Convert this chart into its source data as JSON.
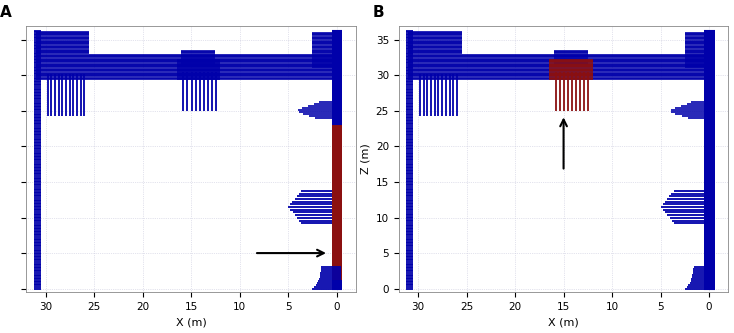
{
  "blue": "#0000aa",
  "red": "#8b1010",
  "bg": "#ffffff",
  "panel_A_label": "A",
  "panel_B_label": "B",
  "xlabel": "X (m)",
  "ylabel_B": "Z (m)",
  "xlim": [
    32,
    -2
  ],
  "ylim": [
    -0.5,
    37
  ],
  "xticks": [
    30,
    25,
    20,
    15,
    10,
    5,
    0
  ],
  "yticks": [
    0,
    5,
    10,
    15,
    20,
    25,
    30,
    35
  ],
  "arrow_A": {
    "x_start": 8.5,
    "y": 5.0,
    "x_end": 0.8
  },
  "arrow_B": {
    "x": 15.0,
    "y_start": 16.5,
    "y_end": 24.5
  },
  "grid_color": "#c8c8dc",
  "grid_style": ":",
  "spine_color": "#888888"
}
